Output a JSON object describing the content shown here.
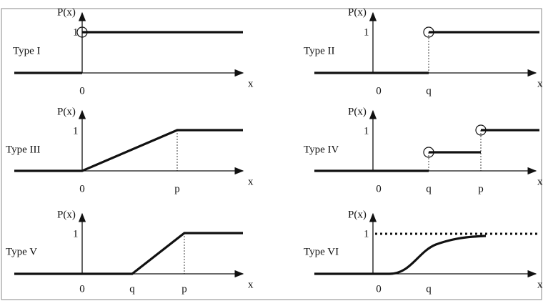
{
  "panels": [
    {
      "name": "Type I",
      "y_label": "P(x)",
      "one": "1",
      "ticks": [
        "0"
      ],
      "x_label": "x"
    },
    {
      "name": "Type II",
      "y_label": "P(x)",
      "one": "1",
      "ticks": [
        "0",
        "q"
      ],
      "x_label": "x"
    },
    {
      "name": "Type III",
      "y_label": "P(x)",
      "one": "1",
      "ticks": [
        "0",
        "p"
      ],
      "x_label": "x"
    },
    {
      "name": "Type IV",
      "y_label": "P(x)",
      "one": "1",
      "ticks": [
        "0",
        "q",
        "p"
      ],
      "x_label": "x"
    },
    {
      "name": "Type V",
      "y_label": "P(x)",
      "one": "1",
      "ticks": [
        "0",
        "q",
        "p"
      ],
      "x_label": "x"
    },
    {
      "name": "Type VI",
      "y_label": "P(x)",
      "one": "1",
      "ticks": [
        "0",
        "q"
      ],
      "x_label": "x"
    }
  ]
}
